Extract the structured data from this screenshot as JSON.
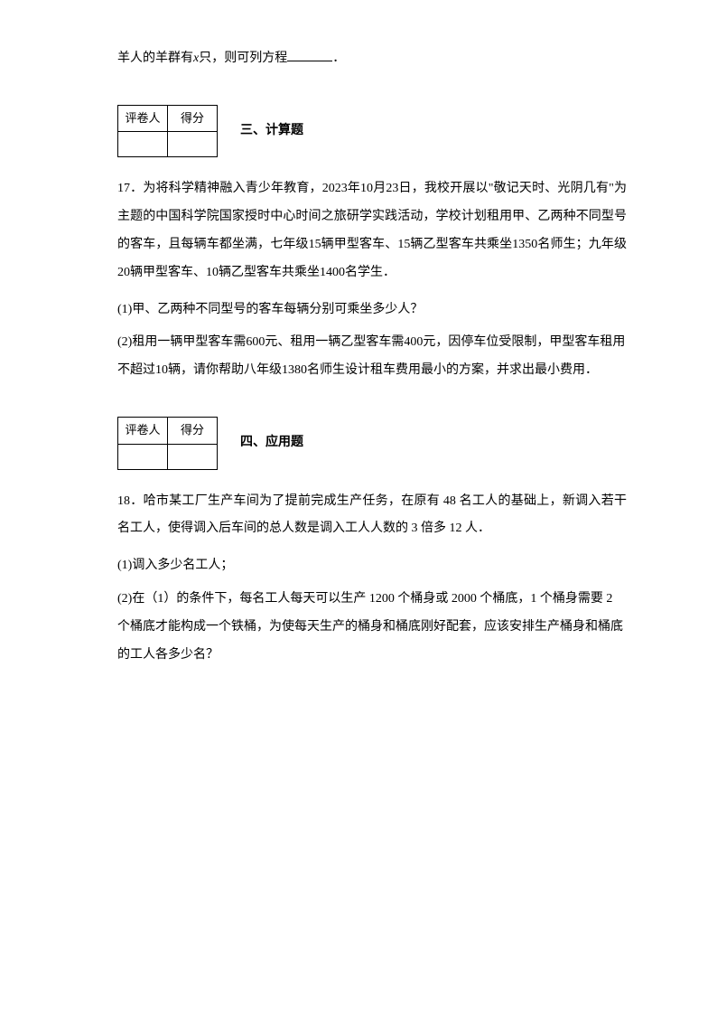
{
  "fragment": {
    "prefix": "羊人的羊群有",
    "variable": "x",
    "suffix": "只，则可列方程",
    "period": "．"
  },
  "section3": {
    "header1": "评卷人",
    "header2": "得分",
    "title": "三、计算题"
  },
  "q17": {
    "text": "17．为将科学精神融入青少年教育，2023年10月23日，我校开展以\"敬记天时、光阴几有\"为主题的中国科学院国家授时中心时间之旅研学实践活动，学校计划租用甲、乙两种不同型号的客车，且每辆车都坐满，七年级15辆甲型客车、15辆乙型客车共乘坐1350名师生；九年级20辆甲型客车、10辆乙型客车共乘坐1400名学生．",
    "sub1": "(1)甲、乙两种不同型号的客车每辆分别可乘坐多少人？",
    "sub2": "(2)租用一辆甲型客车需600元、租用一辆乙型客车需400元，因停车位受限制，甲型客车租用不超过10辆，请你帮助八年级1380名师生设计租车费用最小的方案，并求出最小费用．"
  },
  "section4": {
    "header1": "评卷人",
    "header2": "得分",
    "title": "四、应用题"
  },
  "q18": {
    "text": "18．哈市某工厂生产车间为了提前完成生产任务，在原有 48 名工人的基础上，新调入若干名工人，使得调入后车间的总人数是调入工人人数的 3 倍多 12 人．",
    "sub1": "(1)调入多少名工人；",
    "sub2": "(2)在（1）的条件下，每名工人每天可以生产 1200 个桶身或 2000 个桶底，1 个桶身需要 2 个桶底才能构成一个铁桶，为使每天生产的桶身和桶底刚好配套，应该安排生产桶身和桶底的工人各多少名？"
  }
}
